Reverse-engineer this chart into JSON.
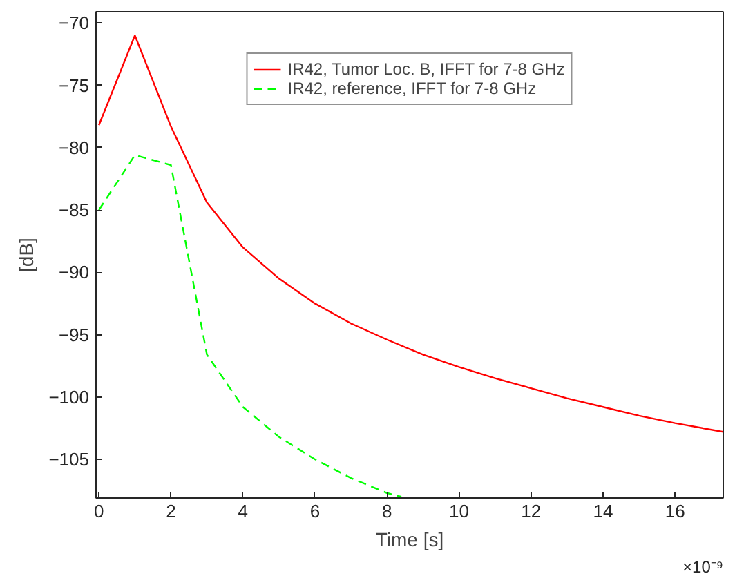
{
  "chart_data": {
    "type": "line",
    "xlabel": "Time [s]",
    "ylabel": "[dB]",
    "annotations": [
      "×10⁻⁹"
    ],
    "xlim": [
      -0.08,
      17.34
    ],
    "ylim": [
      -108.1,
      -69.1
    ],
    "xticks": [
      0,
      2,
      4,
      6,
      8,
      10,
      12,
      14,
      16
    ],
    "yticks": [
      -105,
      -100,
      -95,
      -90,
      -85,
      -80,
      -75,
      -70
    ],
    "grid": false,
    "legend": "top",
    "series": [
      {
        "name": "IR42, Tumor Loc. B, IFFT for 7-8 GHz",
        "color": "#ff0000",
        "line_style": "solid",
        "x": [
          0,
          1,
          2,
          3,
          4,
          5,
          6,
          7,
          8,
          9,
          10,
          11,
          12,
          13,
          14,
          15,
          16,
          17.34
        ],
        "values": [
          -78.2,
          -71,
          -78.3,
          -84.4,
          -88,
          -90.5,
          -92.5,
          -94.1,
          -95.4,
          -96.6,
          -97.6,
          -98.5,
          -99.3,
          -100.1,
          -100.8,
          -101.5,
          -102.1,
          -102.8
        ]
      },
      {
        "name": "IR42, reference, IFFT for 7-8 GHz",
        "color": "#00ff00",
        "line_style": "dashed",
        "x": [
          0,
          1,
          2,
          3,
          4,
          5,
          6,
          7,
          8,
          8.4
        ],
        "values": [
          -85,
          -80.6,
          -81.4,
          -96.6,
          -100.8,
          -103.2,
          -105,
          -106.5,
          -107.7,
          -108
        ]
      }
    ]
  }
}
